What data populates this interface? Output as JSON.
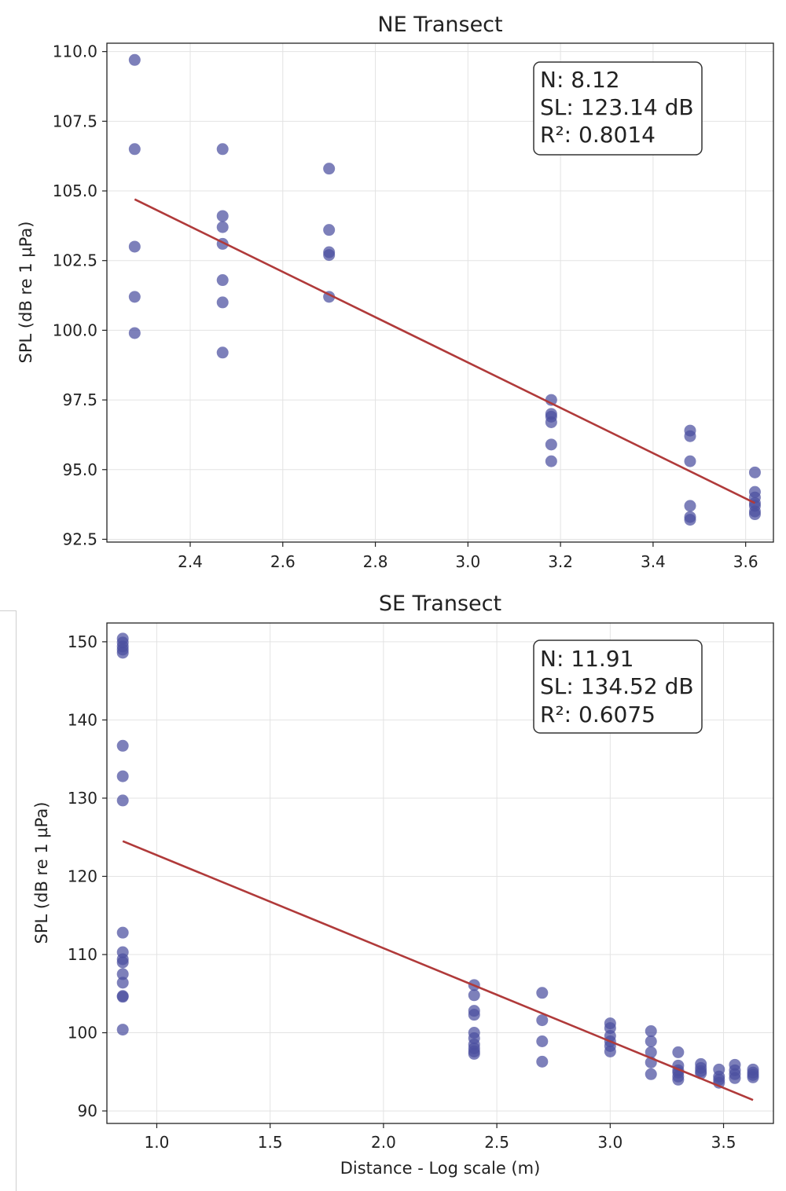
{
  "chart_data": [
    {
      "type": "scatter",
      "title": "NE Transect",
      "xlabel": "",
      "ylabel": "SPL (dB re 1 µPa)",
      "xlim": [
        2.22,
        3.66
      ],
      "ylim": [
        92.4,
        110.3
      ],
      "xticks": [
        "2.4",
        "2.6",
        "2.8",
        "3.0",
        "3.2",
        "3.4",
        "3.6"
      ],
      "yticks": [
        "92.5",
        "95.0",
        "97.5",
        "100.0",
        "102.5",
        "105.0",
        "107.5",
        "110.0"
      ],
      "grid": true,
      "point_color": "#4b4fa0",
      "line_color": "#b03a3a",
      "stats": [
        "N: 8.12",
        "SL: 123.14 dB",
        "R²: 0.8014"
      ],
      "x": [
        2.28,
        2.28,
        2.28,
        2.28,
        2.28,
        2.47,
        2.47,
        2.47,
        2.47,
        2.47,
        2.47,
        2.47,
        2.7,
        2.7,
        2.7,
        2.7,
        2.7,
        3.18,
        3.18,
        3.18,
        3.18,
        3.18,
        3.18,
        3.48,
        3.48,
        3.48,
        3.48,
        3.48,
        3.48,
        3.62,
        3.62,
        3.62,
        3.62,
        3.62,
        3.62,
        3.62
      ],
      "y": [
        109.7,
        106.5,
        103.0,
        101.2,
        99.9,
        106.5,
        104.1,
        103.7,
        103.1,
        101.8,
        101.0,
        99.2,
        105.8,
        103.6,
        102.8,
        102.7,
        101.2,
        97.5,
        97.0,
        96.9,
        96.7,
        95.9,
        95.3,
        96.4,
        96.2,
        95.3,
        93.7,
        93.3,
        93.2,
        94.9,
        94.2,
        94.0,
        93.8,
        93.7,
        93.5,
        93.4
      ],
      "fit_line": {
        "x": [
          2.28,
          3.62
        ],
        "y": [
          104.7,
          93.8
        ]
      }
    },
    {
      "type": "scatter",
      "title": "SE Transect",
      "xlabel": "Distance - Log scale (m)",
      "ylabel": "SPL (dB re 1 µPa)",
      "xlim": [
        0.78,
        3.72
      ],
      "ylim": [
        88.4,
        152.4
      ],
      "xticks": [
        "1.0",
        "1.5",
        "2.0",
        "2.5",
        "3.0",
        "3.5"
      ],
      "yticks": [
        "90",
        "100",
        "110",
        "120",
        "130",
        "140",
        "150"
      ],
      "grid": true,
      "point_color": "#4b4fa0",
      "line_color": "#b03a3a",
      "stats": [
        "N: 11.91",
        "SL: 134.52 dB",
        "R²: 0.6075"
      ],
      "x": [
        0.85,
        0.85,
        0.85,
        0.85,
        0.85,
        0.85,
        0.85,
        0.85,
        0.85,
        0.85,
        0.85,
        0.85,
        0.85,
        0.85,
        0.85,
        0.85,
        0.85,
        2.4,
        2.4,
        2.4,
        2.4,
        2.4,
        2.4,
        2.4,
        2.4,
        2.4,
        2.4,
        2.7,
        2.7,
        2.7,
        2.7,
        3.0,
        3.0,
        3.0,
        3.0,
        3.0,
        3.0,
        3.18,
        3.18,
        3.18,
        3.18,
        3.18,
        3.3,
        3.3,
        3.3,
        3.3,
        3.3,
        3.3,
        3.4,
        3.4,
        3.4,
        3.4,
        3.48,
        3.48,
        3.48,
        3.48,
        3.55,
        3.55,
        3.55,
        3.55,
        3.63,
        3.63,
        3.63,
        3.63
      ],
      "y": [
        150.4,
        149.9,
        149.4,
        149.0,
        148.6,
        136.7,
        132.8,
        129.7,
        112.8,
        110.3,
        109.4,
        109.0,
        107.5,
        106.4,
        104.7,
        104.6,
        100.4,
        106.1,
        104.8,
        102.8,
        102.3,
        100.0,
        99.3,
        98.5,
        98.0,
        97.6,
        97.3,
        105.1,
        101.6,
        98.9,
        96.3,
        101.2,
        100.6,
        99.6,
        98.9,
        98.3,
        97.6,
        100.2,
        98.9,
        97.5,
        96.2,
        94.7,
        97.5,
        95.8,
        95.2,
        94.9,
        94.4,
        94.0,
        96.0,
        95.5,
        95.1,
        94.8,
        95.3,
        94.4,
        94.0,
        93.6,
        95.9,
        95.2,
        94.7,
        94.2,
        95.3,
        94.9,
        94.6,
        94.3
      ],
      "fit_line": {
        "x": [
          0.85,
          3.63
        ],
        "y": [
          124.5,
          91.4
        ]
      }
    }
  ]
}
